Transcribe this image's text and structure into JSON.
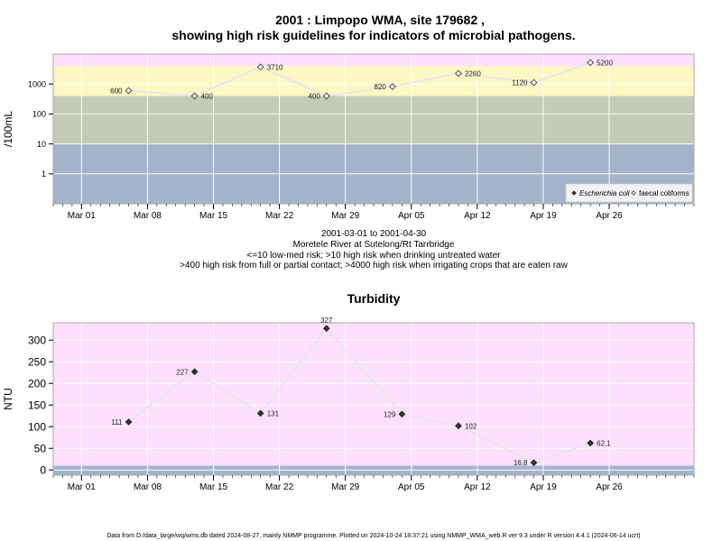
{
  "page": {
    "title_line1": "2001 : Limpopo WMA, site 179682 ,",
    "title_line2": "showing high risk guidelines for indicators of microbial pathogens.",
    "footer": "Data from D:/data_large/wq/wms.db dated 2024-08-27, mainly NMMP programme. Plotted on 2024-10-24 18:37:21 using NMMP_WMA_web.R ver 9.3 under R version 4.4.1 (2024-06-14 ucrt)"
  },
  "chart_data": [
    {
      "type": "scatter",
      "title": "",
      "ylabel": "/100mL",
      "yscale": "log",
      "ylim": [
        0.1,
        10000
      ],
      "y_ticks": [
        1,
        10,
        100,
        1000
      ],
      "y_tick_labels": [
        "1",
        "10",
        "100",
        "1000"
      ],
      "xlim": [
        "2001-02-26",
        "2001-05-05"
      ],
      "x_ticks": [
        "2001-03-01",
        "2001-03-08",
        "2001-03-15",
        "2001-03-22",
        "2001-03-29",
        "2001-04-05",
        "2001-04-12",
        "2001-04-19",
        "2001-04-26"
      ],
      "x_tick_labels": [
        "Mar 01",
        "Mar 08",
        "Mar 15",
        "Mar 22",
        "Mar 29",
        "Apr 05",
        "Apr 12",
        "Apr 19",
        "Apr 26"
      ],
      "grid": true,
      "bands": [
        {
          "from": 0.1,
          "to": 10,
          "color": "#a3b3cb"
        },
        {
          "from": 10,
          "to": 400,
          "color": "#c4cbb9"
        },
        {
          "from": 400,
          "to": 4000,
          "color": "#fdf7c4"
        },
        {
          "from": 4000,
          "to": 10000,
          "color": "#fde0fd"
        }
      ],
      "series": [
        {
          "name": "faecal coliforms",
          "marker": "open-diamond",
          "line_color": "#e6e6e6",
          "x": [
            "2001-03-06",
            "2001-03-13",
            "2001-03-20",
            "2001-03-27",
            "2001-04-03",
            "2001-04-10",
            "2001-04-18",
            "2001-04-24"
          ],
          "values": [
            600,
            400,
            3710,
            400,
            820,
            2260,
            1120,
            5200
          ],
          "labels": [
            "600",
            "400",
            "3710",
            "400",
            "820",
            "2260",
            "1120",
            "5200"
          ],
          "label_side": [
            "left",
            "right",
            "right",
            "left",
            "left",
            "right",
            "left",
            "right"
          ]
        }
      ],
      "legend": {
        "placement": "bottom-right",
        "entries": [
          {
            "label": "Escherichia coli",
            "marker": "filled-diamond"
          },
          {
            "label": "faecal coliforms",
            "marker": "open-diamond"
          }
        ]
      },
      "caption": [
        "2001-03-01 to 2001-04-30",
        "Moretele River at Sutelong/Rt Tarrbridge",
        "<=10 low-med risk; >10 high risk when drinking untreated water",
        ">400 high risk from full or partial contact; >4000 high risk when irrigating crops that are eaten raw"
      ]
    },
    {
      "type": "scatter",
      "title": "Turbidity",
      "ylabel": "NTU",
      "yscale": "linear",
      "ylim": [
        -12,
        340
      ],
      "y_ticks": [
        0,
        50,
        100,
        150,
        200,
        250,
        300
      ],
      "y_tick_labels": [
        "0",
        "50",
        "100",
        "150",
        "200",
        "250",
        "300"
      ],
      "xlim": [
        "2001-02-26",
        "2001-05-05"
      ],
      "x_ticks": [
        "2001-03-01",
        "2001-03-08",
        "2001-03-15",
        "2001-03-22",
        "2001-03-29",
        "2001-04-05",
        "2001-04-12",
        "2001-04-19",
        "2001-04-26"
      ],
      "x_tick_labels": [
        "Mar 01",
        "Mar 08",
        "Mar 15",
        "Mar 22",
        "Mar 29",
        "Apr 05",
        "Apr 12",
        "Apr 19",
        "Apr 26"
      ],
      "grid": true,
      "bands": [
        {
          "from": -12,
          "to": 10,
          "color": "#a3b3cb"
        },
        {
          "from": 10,
          "to": 340,
          "color": "#fde0fd"
        }
      ],
      "series": [
        {
          "marker": "filled-diamond",
          "line_color": "#e6e6e6",
          "x": [
            "2001-03-06",
            "2001-03-13",
            "2001-03-20",
            "2001-03-27",
            "2001-04-04",
            "2001-04-10",
            "2001-04-18",
            "2001-04-24"
          ],
          "values": [
            111,
            227,
            131,
            327,
            129,
            102,
            16.8,
            62.1
          ],
          "labels": [
            "111",
            "227",
            "131",
            "327",
            "129",
            "102",
            "16.8",
            "62.1"
          ],
          "label_side": [
            "left",
            "left",
            "right",
            "top",
            "left",
            "right",
            "left",
            "right"
          ]
        }
      ]
    }
  ]
}
